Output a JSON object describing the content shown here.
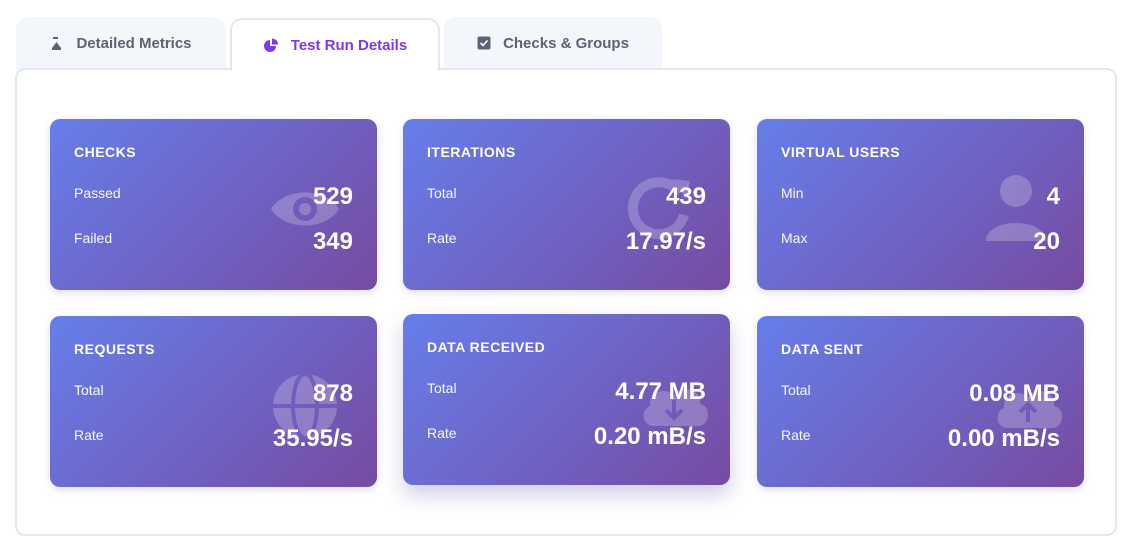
{
  "tabs": [
    {
      "label": "Detailed Metrics",
      "icon": "flask-icon"
    },
    {
      "label": "Test Run Details",
      "icon": "pie-chart-icon",
      "active": true
    },
    {
      "label": "Checks & Groups",
      "icon": "checkbox-icon"
    }
  ],
  "colors": {
    "accent": "#7c3aed",
    "card_gradient_start": "#667eea",
    "card_gradient_end": "#764ba2"
  },
  "cards": {
    "checks": {
      "title": "CHECKS",
      "row1_label": "Passed",
      "row1_value": "529",
      "row2_label": "Failed",
      "row2_value": "349",
      "icon": "eye-icon"
    },
    "iterations": {
      "title": "ITERATIONS",
      "row1_label": "Total",
      "row1_value": "439",
      "row2_label": "Rate",
      "row2_value": "17.97/s",
      "icon": "refresh-icon"
    },
    "virtual_users": {
      "title": "VIRTUAL USERS",
      "row1_label": "Min",
      "row1_value": "4",
      "row2_label": "Max",
      "row2_value": "20",
      "icon": "user-icon"
    },
    "requests": {
      "title": "REQUESTS",
      "row1_label": "Total",
      "row1_value": "878",
      "row2_label": "Rate",
      "row2_value": "35.95/s",
      "icon": "globe-icon"
    },
    "data_received": {
      "title": "DATA RECEIVED",
      "row1_label": "Total",
      "row1_value": "4.77 MB",
      "row2_label": "Rate",
      "row2_value": "0.20 mB/s",
      "icon": "cloud-download-icon"
    },
    "data_sent": {
      "title": "DATA SENT",
      "row1_label": "Total",
      "row1_value": "0.08 MB",
      "row2_label": "Rate",
      "row2_value": "0.00 mB/s",
      "icon": "cloud-upload-icon"
    }
  }
}
